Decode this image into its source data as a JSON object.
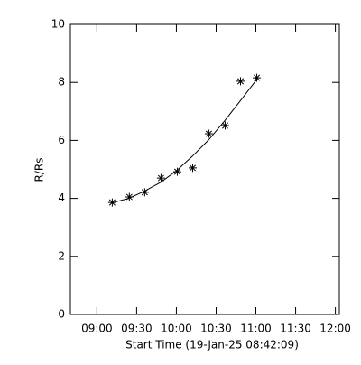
{
  "chart_data": {
    "type": "scatter",
    "x_label": "Start Time (19-Jan-25 08:42:09)",
    "y_label": "R/Rs",
    "xlim": [
      520,
      723
    ],
    "ylim": [
      0,
      10
    ],
    "xticks": [
      {
        "value": 540,
        "label": "09:00"
      },
      {
        "value": 570,
        "label": "09:30"
      },
      {
        "value": 600,
        "label": "10:00"
      },
      {
        "value": 630,
        "label": "10:30"
      },
      {
        "value": 660,
        "label": "11:00"
      },
      {
        "value": 690,
        "label": "11:30"
      },
      {
        "value": 720,
        "label": "12:00"
      }
    ],
    "yticks": [
      0,
      2,
      4,
      6,
      8,
      10
    ],
    "series": [
      {
        "color": "#000000",
        "marker": "star",
        "x": [
          551.6,
          564.5,
          576.1,
          588.4,
          600.7,
          612.3,
          624.5,
          636.8,
          648.4,
          660.7
        ],
        "values": [
          3.86,
          4.05,
          4.21,
          4.7,
          4.92,
          5.05,
          6.23,
          6.51,
          8.04,
          8.16
        ]
      },
      {
        "color": "#000000",
        "marker": "line",
        "x": [
          551.6,
          564,
          576,
          588,
          600,
          612,
          624,
          636,
          648,
          660.7
        ],
        "values": [
          3.85,
          4.0,
          4.25,
          4.55,
          4.95,
          5.45,
          6.0,
          6.65,
          7.35,
          8.1
        ]
      }
    ]
  }
}
